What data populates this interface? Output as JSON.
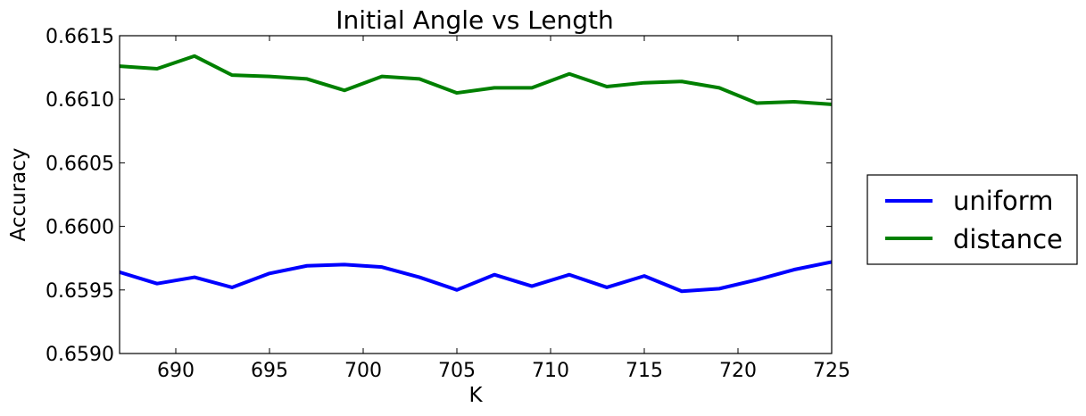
{
  "chart_data": {
    "type": "line",
    "title": "Initial Angle vs Length",
    "xlabel": "K",
    "ylabel": "Accuracy",
    "xlim": [
      687,
      725
    ],
    "ylim": [
      0.659,
      0.6615
    ],
    "xticks": [
      "690",
      "695",
      "700",
      "705",
      "710",
      "715",
      "720",
      "725"
    ],
    "yticks": [
      "0.6590",
      "0.6595",
      "0.6600",
      "0.6605",
      "0.6610",
      "0.6615"
    ],
    "legend_position": "outside-right",
    "grid": false,
    "x": [
      687,
      689,
      691,
      693,
      695,
      697,
      699,
      701,
      703,
      705,
      707,
      709,
      711,
      713,
      715,
      717,
      719,
      721,
      723,
      725
    ],
    "series": [
      {
        "name": "uniform",
        "color": "#0000ff",
        "values": [
          0.65964,
          0.65955,
          0.6596,
          0.65952,
          0.65963,
          0.65969,
          0.6597,
          0.65968,
          0.6596,
          0.6595,
          0.65962,
          0.65953,
          0.65962,
          0.65952,
          0.65961,
          0.65949,
          0.65951,
          0.65958,
          0.65966,
          0.65972
        ]
      },
      {
        "name": "distance",
        "color": "#008000",
        "values": [
          0.66126,
          0.66124,
          0.66134,
          0.66119,
          0.66118,
          0.66116,
          0.66107,
          0.66118,
          0.66116,
          0.66105,
          0.66109,
          0.66109,
          0.6612,
          0.6611,
          0.66113,
          0.66114,
          0.66109,
          0.66097,
          0.66098,
          0.66096
        ]
      }
    ]
  }
}
